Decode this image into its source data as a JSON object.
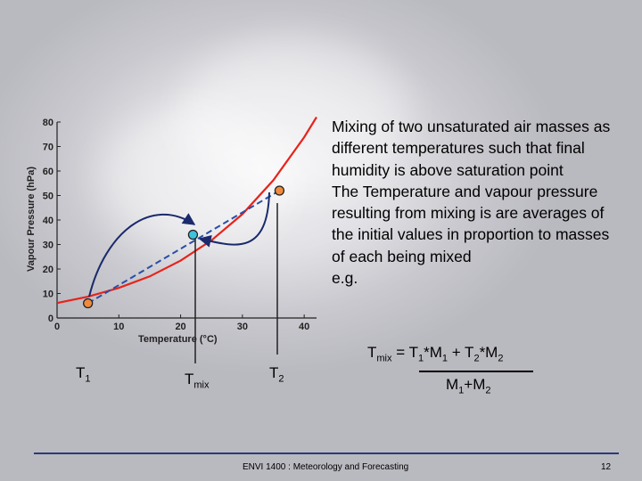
{
  "chart_data": {
    "type": "line",
    "xlabel_main": "Temperature (",
    "xlabel_unit": "°C",
    "xlabel_close": ")",
    "ylabel": "Vapour Pressure (hPa)",
    "xlim": [
      0,
      42
    ],
    "ylim": [
      0,
      80
    ],
    "xticks": [
      0,
      10,
      20,
      30,
      40
    ],
    "yticks": [
      0,
      10,
      20,
      30,
      40,
      50,
      60,
      70,
      80
    ],
    "series": [
      {
        "color": "#e8231a",
        "x": [
          0,
          5,
          10,
          15,
          20,
          25,
          30,
          35,
          40,
          42
        ],
        "y": [
          6.1,
          8.7,
          12.3,
          17.0,
          23.4,
          31.7,
          42.4,
          56.2,
          73.8,
          82.0
        ]
      }
    ],
    "mixing_line": {
      "color": "#2a4ea6",
      "x": [
        5,
        36
      ],
      "y": [
        6,
        52
      ]
    },
    "points": [
      {
        "x": 5,
        "y": 6,
        "fill": "#f08a3c"
      },
      {
        "x": 22,
        "y": 34,
        "fill": "#3fc2dd"
      },
      {
        "x": 36,
        "y": 52,
        "fill": "#f08a3c"
      }
    ]
  },
  "labels": {
    "t1_main": "T",
    "t1_sub": "1",
    "tmix_main": "T",
    "tmix_sub": "mix",
    "t2_main": "T",
    "t2_sub": "2"
  },
  "bullets": [
    "Mixing of two unsaturated air masses as different temperatures such that final humidity is above saturation point",
    "The Temperature and vapour pressure resulting from mixing is are averages of the initial values in proportion to masses of each being mixed",
    "e.g."
  ],
  "formula": {
    "lhs_main": "T",
    "lhs_sub": "mix",
    "eq": " = T",
    "s1": "1",
    "m1": "*M",
    "s2": "1",
    "plus": " + T",
    "s3": "2",
    "m2": "*M",
    "s4": "2",
    "den_a": "M",
    "den_s1": "1",
    "den_plus": "+M",
    "den_s2": "2"
  },
  "footer": {
    "text": "ENVI 1400 : Meteorology and Forecasting",
    "page": "12"
  }
}
